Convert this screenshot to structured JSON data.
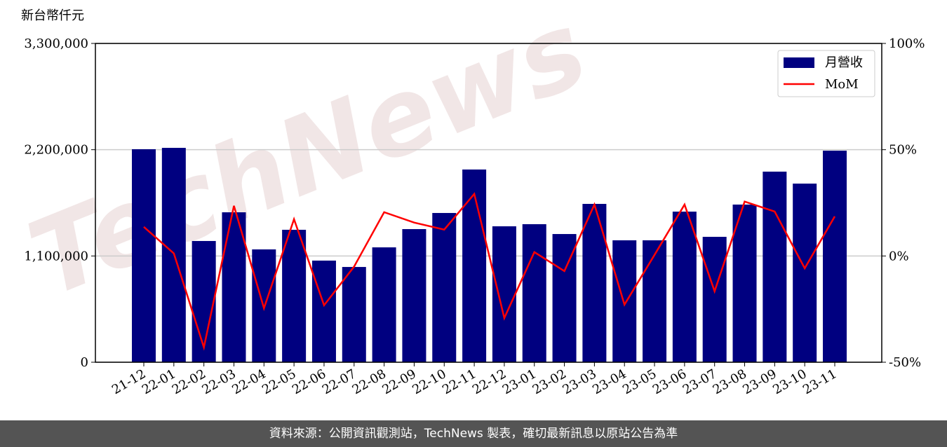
{
  "chart_data": {
    "type": "bar-line",
    "y_label": "新台幣仟元",
    "watermark": "TechNews",
    "categories": [
      "21-12",
      "22-01",
      "22-02",
      "22-03",
      "22-04",
      "22-05",
      "22-06",
      "22-07",
      "22-08",
      "22-09",
      "22-10",
      "22-11",
      "22-12",
      "23-01",
      "23-02",
      "23-03",
      "23-04",
      "23-05",
      "23-06",
      "23-07",
      "23-08",
      "23-09",
      "23-10",
      "23-11"
    ],
    "series": [
      {
        "name": "月營收",
        "type": "bar",
        "color": "#000080",
        "values": [
          2205000,
          2219000,
          1255000,
          1552000,
          1168000,
          1371000,
          1052000,
          986000,
          1189000,
          1378000,
          1545000,
          1995000,
          1407000,
          1429000,
          1327000,
          1639000,
          1262000,
          1262000,
          1559000,
          1298000,
          1632000,
          1973000,
          1849000,
          2190000
        ]
      },
      {
        "name": "MoM",
        "type": "line",
        "axis": "y2",
        "color": "#ff0000",
        "values": [
          13.7,
          1.2,
          -43,
          23.6,
          -24.6,
          17.3,
          -23.2,
          -5,
          20.6,
          15.7,
          12.4,
          29.2,
          -29.2,
          1.8,
          -7.1,
          24.2,
          -22.9,
          0.5,
          24.2,
          -16.6,
          25.6,
          20.9,
          -5.8,
          18.6
        ]
      }
    ],
    "ylim": [
      0,
      3300000
    ],
    "yticks": [
      0,
      {
        "value": 1100000,
        "label": "1,100,000"
      },
      {
        "value": 2200000,
        "label": "2,200,000"
      },
      {
        "value": 3300000,
        "label": "3,300,000"
      }
    ],
    "y2lim": [
      -50,
      100
    ],
    "y2ticks": [
      {
        "value": -50,
        "label": "-50%"
      },
      {
        "value": 0,
        "label": "0%"
      },
      {
        "value": 50,
        "label": "50%"
      },
      {
        "value": 100,
        "label": "100%"
      }
    ],
    "grid": true,
    "legend": "upper right"
  },
  "footer": "資料來源：公開資訊觀測站，TechNews 製表，確切最新訊息以原站公告為準"
}
